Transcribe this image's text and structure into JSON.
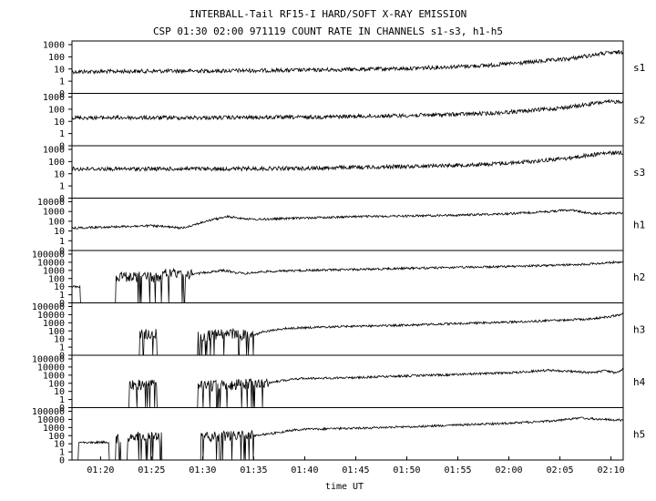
{
  "chart_data": {
    "type": "line",
    "title": "INTERBALL-Tail RF15-I HARD/SOFT X-RAY EMISSION",
    "subtitle": "CSP 01:30 02:00 971119  COUNT RATE IN CHANNELS s1-s3, h1-h5",
    "xlabel": "time UT",
    "x_ticks": [
      "01:20",
      "01:25",
      "01:30",
      "01:35",
      "01:40",
      "01:45",
      "01:50",
      "01:55",
      "02:00",
      "02:05",
      "02:10"
    ],
    "x_tick_minutes": [
      80,
      85,
      90,
      95,
      100,
      105,
      110,
      115,
      120,
      125,
      130
    ],
    "xlim_minutes": [
      77.2,
      131.2
    ],
    "yscale": "log",
    "panels": [
      {
        "name": "s1",
        "ylim": [
          0,
          1000
        ],
        "yticks": [
          "1000",
          "100",
          "10",
          "1",
          "0"
        ],
        "points": [
          [
            77.2,
            6
          ],
          [
            90,
            7
          ],
          [
            100,
            8
          ],
          [
            110,
            11
          ],
          [
            118,
            20
          ],
          [
            122,
            35
          ],
          [
            126,
            70
          ],
          [
            129,
            180
          ],
          [
            131.2,
            250
          ]
        ]
      },
      {
        "name": "s2",
        "ylim": [
          0,
          1000
        ],
        "yticks": [
          "1000",
          "100",
          "10",
          "1",
          "0"
        ],
        "points": [
          [
            77.2,
            20
          ],
          [
            90,
            20
          ],
          [
            100,
            22
          ],
          [
            110,
            30
          ],
          [
            118,
            45
          ],
          [
            122,
            75
          ],
          [
            126,
            150
          ],
          [
            129,
            350
          ],
          [
            131.2,
            450
          ]
        ]
      },
      {
        "name": "s3",
        "ylim": [
          0,
          1000
        ],
        "yticks": [
          "1000",
          "100",
          "10",
          "1",
          "0"
        ],
        "points": [
          [
            77.2,
            25
          ],
          [
            90,
            25
          ],
          [
            100,
            28
          ],
          [
            110,
            40
          ],
          [
            118,
            60
          ],
          [
            122,
            100
          ],
          [
            126,
            200
          ],
          [
            129,
            450
          ],
          [
            131.2,
            550
          ]
        ]
      },
      {
        "name": "h1",
        "ylim": [
          0,
          10000
        ],
        "yticks": [
          "10000",
          "1000",
          "100",
          "10",
          "1",
          "0"
        ],
        "points": [
          [
            77.2,
            20
          ],
          [
            80,
            25
          ],
          [
            85,
            35
          ],
          [
            88,
            20
          ],
          [
            89,
            40
          ],
          [
            91,
            150
          ],
          [
            92.5,
            300
          ],
          [
            95,
            150
          ],
          [
            100,
            220
          ],
          [
            105,
            300
          ],
          [
            110,
            350
          ],
          [
            115,
            420
          ],
          [
            120,
            600
          ],
          [
            124,
            1000
          ],
          [
            126,
            1500
          ],
          [
            127,
            1000
          ],
          [
            128,
            600
          ],
          [
            131.2,
            700
          ]
        ]
      },
      {
        "name": "h2",
        "ylim": [
          0,
          100000
        ],
        "yticks": [
          "100000",
          "10000",
          "1000",
          "100",
          "10",
          "1",
          "0"
        ],
        "points": [
          [
            77.2,
            10
          ],
          [
            78,
            10
          ],
          [
            78,
            0
          ],
          [
            81.5,
            0
          ],
          [
            81.5,
            150
          ],
          [
            86,
            150
          ],
          [
            86.5,
            500
          ],
          [
            88,
            200
          ],
          [
            90,
            500
          ],
          [
            92,
            1000
          ],
          [
            94,
            400
          ],
          [
            96,
            700
          ],
          [
            100,
            1000
          ],
          [
            105,
            1300
          ],
          [
            110,
            1800
          ],
          [
            115,
            2300
          ],
          [
            120,
            3000
          ],
          [
            125,
            4500
          ],
          [
            128,
            6000
          ],
          [
            131.2,
            12000
          ]
        ],
        "gated_noise": [
          [
            81.5,
            89
          ]
        ]
      },
      {
        "name": "h3",
        "ylim": [
          0,
          100000
        ],
        "yticks": [
          "100000",
          "10000",
          "1000",
          "100",
          "10",
          "1",
          "0"
        ],
        "points": [
          [
            77.2,
            0
          ],
          [
            83.8,
            0
          ],
          [
            83.8,
            40
          ],
          [
            85.5,
            40
          ],
          [
            85.5,
            0
          ],
          [
            89.5,
            0
          ],
          [
            89.5,
            20
          ],
          [
            92,
            40
          ],
          [
            95,
            30
          ],
          [
            96,
            80
          ],
          [
            98,
            200
          ],
          [
            100,
            250
          ],
          [
            105,
            380
          ],
          [
            110,
            500
          ],
          [
            115,
            800
          ],
          [
            120,
            1200
          ],
          [
            125,
            2000
          ],
          [
            128,
            3000
          ],
          [
            130,
            6000
          ],
          [
            131.2,
            12000
          ]
        ],
        "gated_noise": [
          [
            83.8,
            85.5
          ],
          [
            89.5,
            95
          ]
        ]
      },
      {
        "name": "h4",
        "ylim": [
          0,
          100000
        ],
        "yticks": [
          "100000",
          "10000",
          "1000",
          "100",
          "10",
          "1",
          "0"
        ],
        "points": [
          [
            77.2,
            0
          ],
          [
            82.8,
            0
          ],
          [
            82.8,
            60
          ],
          [
            85.5,
            60
          ],
          [
            85.5,
            0
          ],
          [
            89.5,
            0
          ],
          [
            89.5,
            40
          ],
          [
            92,
            60
          ],
          [
            95,
            80
          ],
          [
            97,
            150
          ],
          [
            99,
            350
          ],
          [
            100,
            400
          ],
          [
            105,
            500
          ],
          [
            110,
            800
          ],
          [
            115,
            1200
          ],
          [
            120,
            2000
          ],
          [
            124,
            4000
          ],
          [
            126,
            3000
          ],
          [
            128,
            2000
          ],
          [
            129.5,
            3500
          ],
          [
            130.5,
            1800
          ],
          [
            131.2,
            6000
          ]
        ],
        "gated_noise": [
          [
            82.8,
            85.5
          ],
          [
            89.5,
            96.5
          ]
        ]
      },
      {
        "name": "h5",
        "ylim": [
          0,
          100000
        ],
        "yticks": [
          "100000",
          "10000",
          "1000",
          "100",
          "10",
          "1",
          "0"
        ],
        "points": [
          [
            77.2,
            0
          ],
          [
            77.8,
            0
          ],
          [
            77.8,
            15
          ],
          [
            80.8,
            15
          ],
          [
            80.8,
            0
          ],
          [
            81.5,
            0
          ],
          [
            81.5,
            50
          ],
          [
            82.5,
            0
          ],
          [
            82.8,
            80
          ],
          [
            86,
            80
          ],
          [
            86,
            0
          ],
          [
            89.8,
            0
          ],
          [
            89.8,
            60
          ],
          [
            92,
            80
          ],
          [
            95,
            100
          ],
          [
            97,
            200
          ],
          [
            99,
            500
          ],
          [
            100,
            600
          ],
          [
            105,
            800
          ],
          [
            110,
            1200
          ],
          [
            115,
            2000
          ],
          [
            120,
            3500
          ],
          [
            124,
            6000
          ],
          [
            127,
            15000
          ],
          [
            129,
            10000
          ],
          [
            131.2,
            8000
          ]
        ],
        "gated_noise": [
          [
            81.5,
            86
          ],
          [
            89.8,
            95
          ]
        ]
      }
    ]
  }
}
